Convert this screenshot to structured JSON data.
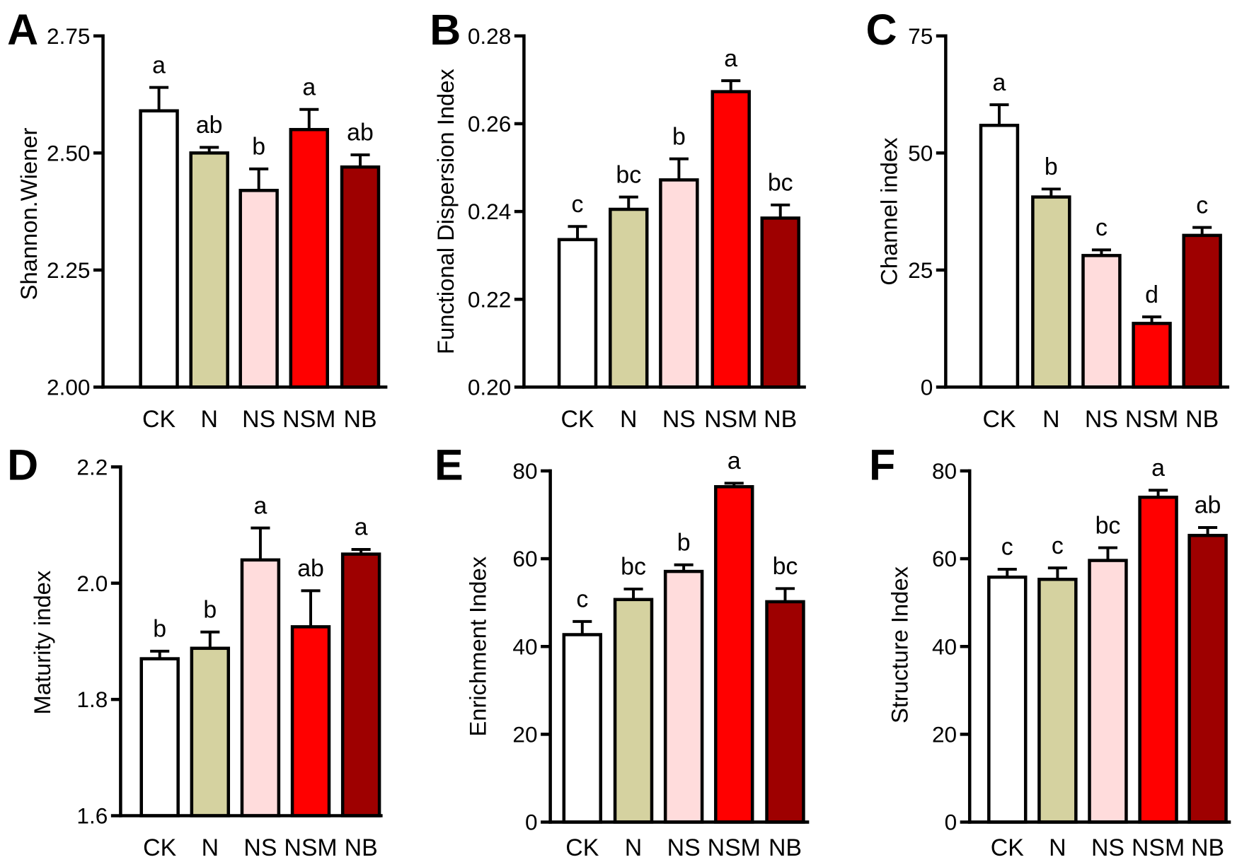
{
  "colors": {
    "CK": "#ffffff",
    "N": "#d5d2a0",
    "NS": "#ffdcdc",
    "NSM": "#ff0000",
    "NB": "#9e0000"
  },
  "chart_data": [
    {
      "panel_label": "A",
      "type": "bar",
      "categories": [
        "CK",
        "N",
        "NS",
        "NSM",
        "NB"
      ],
      "values": [
        2.59,
        2.5,
        2.42,
        2.55,
        2.47
      ],
      "errors": [
        0.05,
        0.012,
        0.046,
        0.043,
        0.026
      ],
      "significance": [
        "a",
        "ab",
        "b",
        "a",
        "ab"
      ],
      "xlabel": "",
      "ylabel": "Shannon.Wiener",
      "ylim": [
        2.0,
        2.75
      ],
      "yticks": [
        2.0,
        2.25,
        2.5,
        2.75
      ],
      "ytick_labels": [
        "2.00",
        "2.25",
        "2.50",
        "2.75"
      ]
    },
    {
      "panel_label": "B",
      "type": "bar",
      "categories": [
        "CK",
        "N",
        "NS",
        "NSM",
        "NB"
      ],
      "values": [
        0.2336,
        0.2405,
        0.2472,
        0.2673,
        0.2385
      ],
      "errors": [
        0.003,
        0.0028,
        0.0048,
        0.0025,
        0.003
      ],
      "significance": [
        "c",
        "bc",
        "b",
        "a",
        "bc"
      ],
      "xlabel": "",
      "ylabel": "Functional Dispersion Index",
      "ylim": [
        0.2,
        0.28
      ],
      "yticks": [
        0.2,
        0.22,
        0.24,
        0.26,
        0.28
      ],
      "ytick_labels": [
        "0.20",
        "0.22",
        "0.24",
        "0.26",
        "0.28"
      ]
    },
    {
      "panel_label": "C",
      "type": "bar",
      "categories": [
        "CK",
        "N",
        "NS",
        "NSM",
        "NB"
      ],
      "values": [
        55.9,
        40.6,
        28.1,
        13.6,
        32.4
      ],
      "errors": [
        4.4,
        1.7,
        1.2,
        1.4,
        1.7
      ],
      "significance": [
        "a",
        "b",
        "c",
        "d",
        "c"
      ],
      "xlabel": "",
      "ylabel": "Channel index",
      "ylim": [
        0,
        75
      ],
      "yticks": [
        0,
        25,
        50,
        75
      ],
      "ytick_labels": [
        "0",
        "25",
        "50",
        "75"
      ]
    },
    {
      "panel_label": "D",
      "type": "bar",
      "categories": [
        "CK",
        "N",
        "NS",
        "NSM",
        "NB"
      ],
      "values": [
        1.87,
        1.888,
        2.04,
        1.925,
        2.05
      ],
      "errors": [
        0.013,
        0.028,
        0.055,
        0.062,
        0.008
      ],
      "significance": [
        "b",
        "b",
        "a",
        "ab",
        "a"
      ],
      "xlabel": "",
      "ylabel": "Maturity index",
      "ylim": [
        1.6,
        2.2
      ],
      "yticks": [
        1.6,
        1.8,
        2.0,
        2.2
      ],
      "ytick_labels": [
        "1.6",
        "1.8",
        "2.0",
        "2.2"
      ]
    },
    {
      "panel_label": "E",
      "type": "bar",
      "categories": [
        "CK",
        "N",
        "NS",
        "NSM",
        "NB"
      ],
      "values": [
        42.7,
        50.7,
        57.1,
        76.4,
        50.2
      ],
      "errors": [
        3.0,
        2.4,
        1.5,
        0.8,
        3.0
      ],
      "significance": [
        "c",
        "bc",
        "b",
        "a",
        "bc"
      ],
      "xlabel": "",
      "ylabel": "Enrichment Index",
      "ylim": [
        0,
        80
      ],
      "yticks": [
        0,
        20,
        40,
        60,
        80
      ],
      "ytick_labels": [
        "0",
        "20",
        "40",
        "60",
        "80"
      ]
    },
    {
      "panel_label": "F",
      "type": "bar",
      "categories": [
        "CK",
        "N",
        "NS",
        "NSM",
        "NB"
      ],
      "values": [
        55.8,
        55.3,
        59.6,
        74.0,
        65.3
      ],
      "errors": [
        1.8,
        2.6,
        2.9,
        1.6,
        1.8
      ],
      "significance": [
        "c",
        "c",
        "bc",
        "a",
        "ab"
      ],
      "xlabel": "",
      "ylabel": "Structure Index",
      "ylim": [
        0,
        80
      ],
      "yticks": [
        0,
        20,
        40,
        60,
        80
      ],
      "ytick_labels": [
        "0",
        "20",
        "40",
        "60",
        "80"
      ]
    }
  ]
}
